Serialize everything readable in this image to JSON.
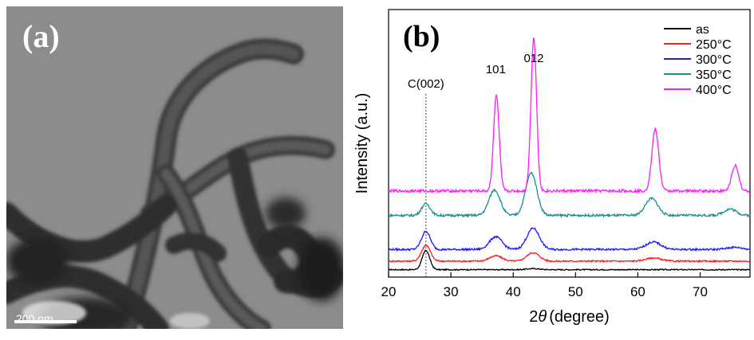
{
  "panel_a": {
    "label": "(a)",
    "scale_bar": "200 nm"
  },
  "chart_data": {
    "type": "line",
    "panel_label": "(b)",
    "xlabel_prefix": "2",
    "xlabel_symbol": "θ",
    "xlabel_unit": "(degree)",
    "ylabel": "Intensity (a.u.)",
    "xlim": [
      20,
      78
    ],
    "xticks": [
      20,
      30,
      40,
      50,
      60,
      70
    ],
    "yticks_shown": false,
    "grid": false,
    "legend_position": "top-right",
    "annotations": [
      {
        "text": "C(002)",
        "x": 26
      },
      {
        "text": "101",
        "x": 37.2
      },
      {
        "text": "012",
        "x": 43.3
      }
    ],
    "reference_line_x": 26,
    "series": [
      {
        "name": "as",
        "color": "#000000",
        "baseline": 0.05,
        "peaks": [
          {
            "x": 26,
            "h": 0.9,
            "w": 0.6
          },
          {
            "x": 43.2,
            "h": 0.05,
            "w": 1.0
          }
        ]
      },
      {
        "name": "250°C",
        "color": "#ff1a1a",
        "baseline": 0.45,
        "peaks": [
          {
            "x": 26,
            "h": 0.75,
            "w": 0.7
          },
          {
            "x": 37.2,
            "h": 0.25,
            "w": 1.0
          },
          {
            "x": 43.2,
            "h": 0.4,
            "w": 1.0
          },
          {
            "x": 62.5,
            "h": 0.15,
            "w": 1.2
          }
        ]
      },
      {
        "name": "300°C",
        "color": "#1a1aff",
        "baseline": 1.0,
        "peaks": [
          {
            "x": 26,
            "h": 0.85,
            "w": 0.7
          },
          {
            "x": 37.2,
            "h": 0.6,
            "w": 1.0
          },
          {
            "x": 43.2,
            "h": 1.0,
            "w": 1.0
          },
          {
            "x": 62.5,
            "h": 0.35,
            "w": 1.2
          },
          {
            "x": 75.5,
            "h": 0.1,
            "w": 1.2
          }
        ]
      },
      {
        "name": "350°C",
        "color": "#1a8f8f",
        "baseline": 2.6,
        "peaks": [
          {
            "x": 26,
            "h": 0.55,
            "w": 0.7
          },
          {
            "x": 37.0,
            "h": 1.2,
            "w": 0.9
          },
          {
            "x": 42.9,
            "h": 2.0,
            "w": 0.9
          },
          {
            "x": 62.2,
            "h": 0.8,
            "w": 1.0
          },
          {
            "x": 74.8,
            "h": 0.3,
            "w": 1.0
          }
        ]
      },
      {
        "name": "400°C",
        "color": "#ff1aff",
        "baseline": 3.75,
        "peaks": [
          {
            "x": 37.3,
            "h": 4.5,
            "w": 0.45
          },
          {
            "x": 43.3,
            "h": 7.2,
            "w": 0.45
          },
          {
            "x": 62.8,
            "h": 2.9,
            "w": 0.55
          },
          {
            "x": 75.6,
            "h": 1.2,
            "w": 0.55
          }
        ]
      }
    ]
  }
}
